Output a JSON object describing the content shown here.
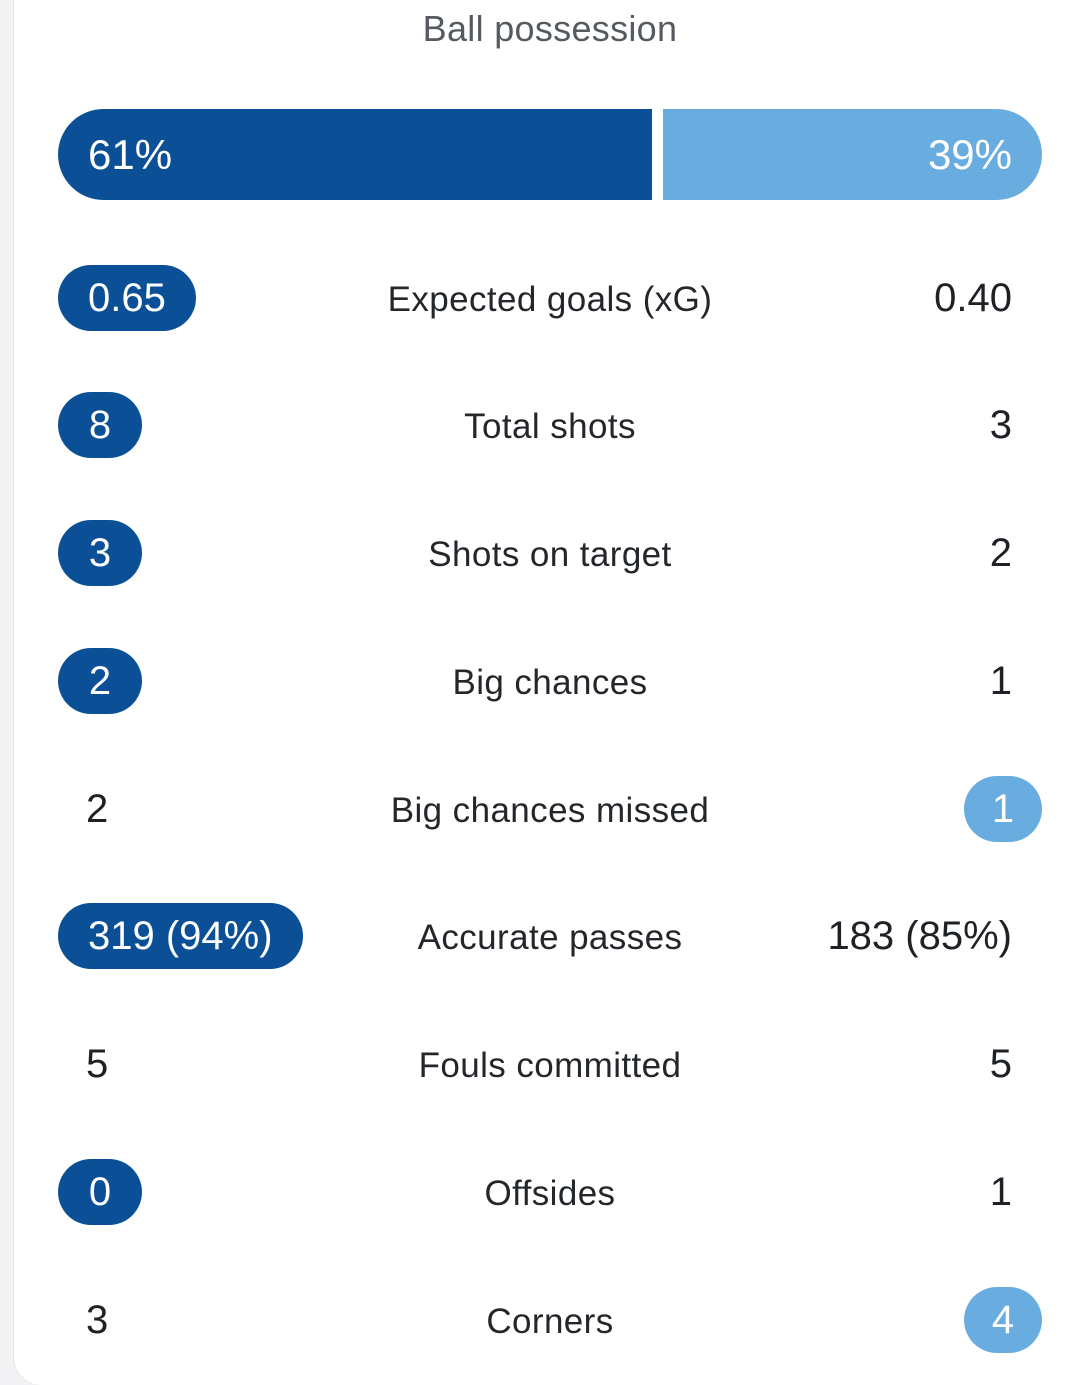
{
  "possession": {
    "title": "Ball possession",
    "home_label": "61%",
    "away_label": "39%",
    "home_fraction": 0.61,
    "away_fraction": 0.39,
    "home_color": "#0b5096",
    "away_color": "#69ade0"
  },
  "stats": [
    {
      "label": "Expected goals (xG)",
      "home": "0.65",
      "away": "0.40",
      "highlight": "home"
    },
    {
      "label": "Total shots",
      "home": "8",
      "away": "3",
      "highlight": "home"
    },
    {
      "label": "Shots on target",
      "home": "3",
      "away": "2",
      "highlight": "home"
    },
    {
      "label": "Big chances",
      "home": "2",
      "away": "1",
      "highlight": "home"
    },
    {
      "label": "Big chances missed",
      "home": "2",
      "away": "1",
      "highlight": "away"
    },
    {
      "label": "Accurate passes",
      "home": "319 (94%)",
      "away": "183 (85%)",
      "highlight": "home"
    },
    {
      "label": "Fouls committed",
      "home": "5",
      "away": "5",
      "highlight": "none"
    },
    {
      "label": "Offsides",
      "home": "0",
      "away": "1",
      "highlight": "home"
    },
    {
      "label": "Corners",
      "home": "3",
      "away": "4",
      "highlight": "away"
    }
  ]
}
